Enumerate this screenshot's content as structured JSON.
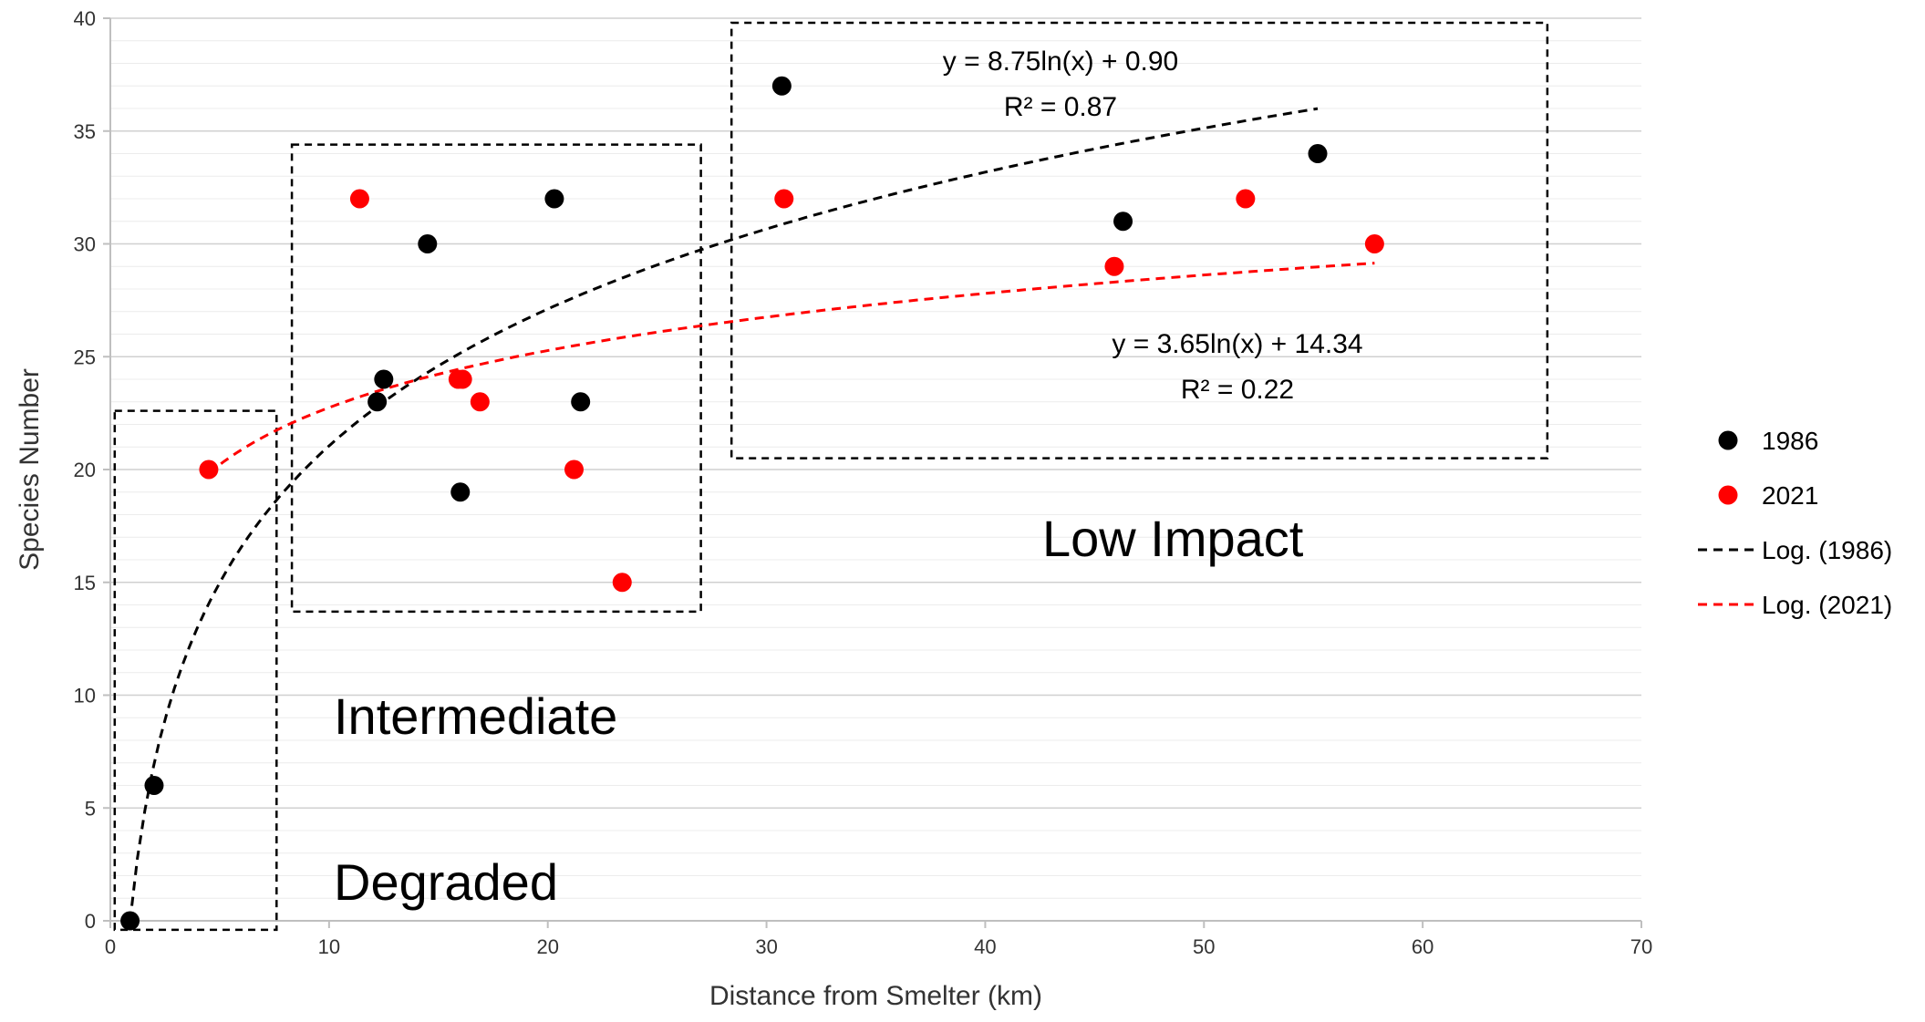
{
  "chart_data": {
    "type": "scatter",
    "xlabel": "Distance from Smelter (km)",
    "ylabel": "Species Number",
    "xlim": [
      0,
      70
    ],
    "ylim": [
      0,
      40
    ],
    "x_ticks": [
      "0",
      "10",
      "20",
      "30",
      "40",
      "50",
      "60",
      "70"
    ],
    "y_ticks": [
      "0",
      "5",
      "10",
      "15",
      "20",
      "25",
      "30",
      "35",
      "40"
    ],
    "grid": true,
    "legend_position": "right",
    "series": [
      {
        "name": "1986",
        "color": "#000000",
        "points": [
          [
            0.9,
            0
          ],
          [
            2.0,
            6
          ],
          [
            12.2,
            23
          ],
          [
            12.5,
            24
          ],
          [
            14.5,
            30
          ],
          [
            16.0,
            19
          ],
          [
            20.3,
            32
          ],
          [
            21.5,
            23
          ],
          [
            30.7,
            37
          ],
          [
            46.3,
            31
          ],
          [
            55.2,
            34
          ]
        ]
      },
      {
        "name": "2021",
        "color": "#ff0000",
        "points": [
          [
            4.5,
            20
          ],
          [
            11.4,
            32
          ],
          [
            15.9,
            24
          ],
          [
            16.1,
            24
          ],
          [
            16.9,
            23
          ],
          [
            21.2,
            20
          ],
          [
            23.4,
            15
          ],
          [
            30.8,
            32
          ],
          [
            45.9,
            29
          ],
          [
            51.9,
            32
          ],
          [
            57.8,
            30
          ]
        ]
      }
    ],
    "trendlines": [
      {
        "name": "Log. (1986)",
        "color": "#000000",
        "a": 8.75,
        "b": 0.9,
        "x_range": [
          0.9,
          55.2
        ],
        "equation": "y = 8.75ln(x) + 0.90",
        "r2": "R² = 0.87"
      },
      {
        "name": "Log. (2021)",
        "color": "#ff0000",
        "a": 3.65,
        "b": 14.34,
        "x_range": [
          4.5,
          57.8
        ],
        "equation": "y = 3.65ln(x) + 14.34",
        "r2": "R² = 0.22"
      }
    ],
    "zones": [
      {
        "label": "Degraded",
        "x_range": [
          0.2,
          7.6
        ],
        "y_range": [
          -0.4,
          22.6
        ]
      },
      {
        "label": "Intermediate",
        "x_range": [
          8.3,
          27.0
        ],
        "y_range": [
          13.7,
          34.4
        ]
      },
      {
        "label": "Low Impact",
        "x_range": [
          28.4,
          65.7
        ],
        "y_range": [
          20.5,
          39.8
        ]
      }
    ],
    "legend": [
      "1986",
      "2021",
      "Log. (1986)",
      "Log. (2021)"
    ]
  }
}
